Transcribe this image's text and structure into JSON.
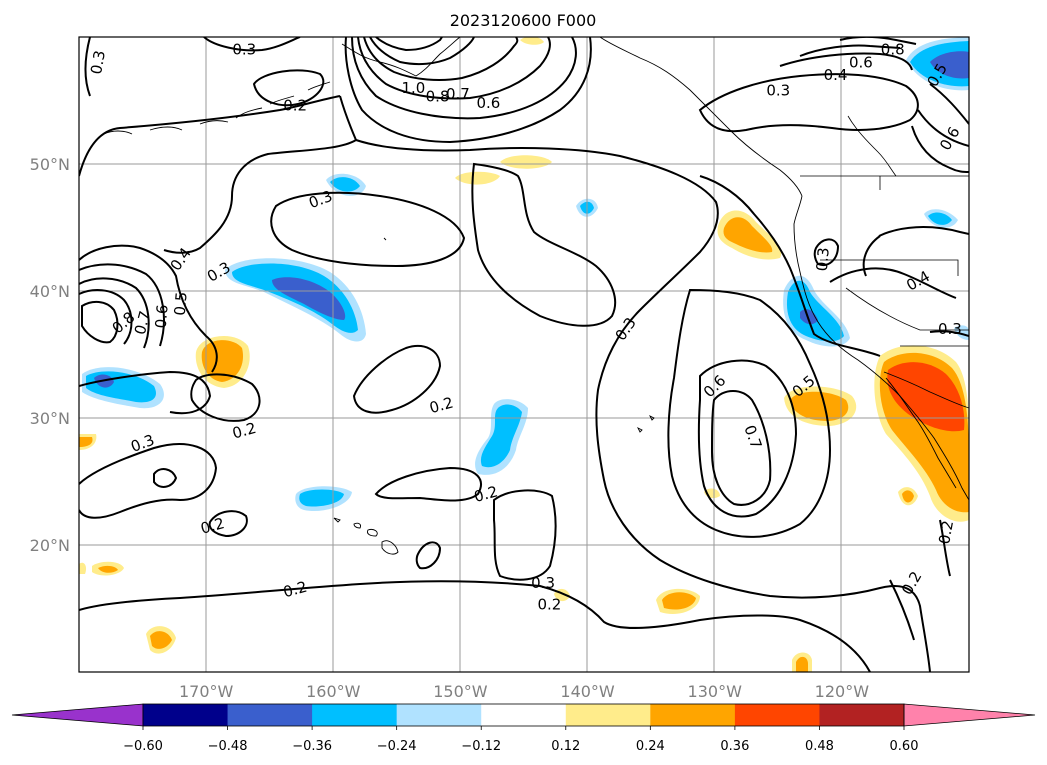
{
  "title": "2023120600 F000",
  "map": {
    "lon_range": [
      -180,
      -110
    ],
    "lat_range": [
      10,
      60
    ],
    "lon_ticks": [
      {
        "lon": -170,
        "label": "170°W"
      },
      {
        "lon": -160,
        "label": "160°W"
      },
      {
        "lon": -150,
        "label": "150°W"
      },
      {
        "lon": -140,
        "label": "140°W"
      },
      {
        "lon": -130,
        "label": "130°W"
      },
      {
        "lon": -120,
        "label": "120°W"
      }
    ],
    "lat_ticks": [
      {
        "lat": 20,
        "label": "20°N"
      },
      {
        "lat": 30,
        "label": "30°N"
      },
      {
        "lat": 40,
        "label": "40°N"
      },
      {
        "lat": 50,
        "label": "50°N"
      }
    ],
    "grid": true
  },
  "colorbar": {
    "colors": [
      "#9932cc",
      "#00008b",
      "#3a5fcd",
      "#00bfff",
      "#b0e2ff",
      "#ffffff",
      "#ffec8b",
      "#ffa500",
      "#ff4500",
      "#b22222",
      "#ff82ab"
    ],
    "labels": [
      "−0.60",
      "−0.48",
      "−0.36",
      "−0.24",
      "−0.12",
      "0.12",
      "0.24",
      "0.36",
      "0.48",
      "0.60"
    ],
    "values": [
      -0.6,
      -0.48,
      -0.36,
      -0.24,
      -0.12,
      0.12,
      0.24,
      0.36,
      0.48,
      0.6
    ],
    "extend": "both"
  },
  "contour_labels": [
    {
      "text": "0.3",
      "lon": -178.5,
      "lat": 58.0,
      "rot": -80
    },
    {
      "text": "0.3",
      "lon": -167.0,
      "lat": 59.0,
      "rot": 0
    },
    {
      "text": "0.2",
      "lon": -163.0,
      "lat": 54.6,
      "rot": 0
    },
    {
      "text": "1.0",
      "lon": -153.7,
      "lat": 56.0,
      "rot": 0
    },
    {
      "text": "0.8",
      "lon": -151.8,
      "lat": 55.3,
      "rot": 0
    },
    {
      "text": "0.7",
      "lon": -150.2,
      "lat": 55.5,
      "rot": 0
    },
    {
      "text": "0.6",
      "lon": -147.8,
      "lat": 54.8,
      "rot": 0
    },
    {
      "text": "0.8",
      "lon": -116.0,
      "lat": 59.0,
      "rot": 0
    },
    {
      "text": "0.6",
      "lon": -118.5,
      "lat": 58.0,
      "rot": 0
    },
    {
      "text": "0.4",
      "lon": -120.5,
      "lat": 57.0,
      "rot": 0
    },
    {
      "text": "0.5",
      "lon": -112.5,
      "lat": 57.0,
      "rot": -60
    },
    {
      "text": "0.3",
      "lon": -125.0,
      "lat": 55.8,
      "rot": 0
    },
    {
      "text": "0.6",
      "lon": -111.5,
      "lat": 52.0,
      "rot": -60
    },
    {
      "text": "0.3",
      "lon": -161.0,
      "lat": 47.2,
      "rot": -20
    },
    {
      "text": "0.4",
      "lon": -172.0,
      "lat": 42.5,
      "rot": -55
    },
    {
      "text": "0.3",
      "lon": -169.0,
      "lat": 41.5,
      "rot": -30
    },
    {
      "text": "0.5",
      "lon": -172.0,
      "lat": 39.0,
      "rot": -85
    },
    {
      "text": "0.8",
      "lon": -176.5,
      "lat": 37.5,
      "rot": -40
    },
    {
      "text": "0.7",
      "lon": -175.0,
      "lat": 37.5,
      "rot": -75
    },
    {
      "text": "0.6",
      "lon": -173.5,
      "lat": 38.0,
      "rot": -85
    },
    {
      "text": "0.3",
      "lon": -137.0,
      "lat": 37.0,
      "rot": -55
    },
    {
      "text": "0.3",
      "lon": -121.5,
      "lat": 42.5,
      "rot": -85
    },
    {
      "text": "0.4",
      "lon": -114.0,
      "lat": 40.8,
      "rot": -30
    },
    {
      "text": "0.3",
      "lon": -111.5,
      "lat": 37.0,
      "rot": 0
    },
    {
      "text": "0.6",
      "lon": -130.0,
      "lat": 32.5,
      "rot": -45
    },
    {
      "text": "0.5",
      "lon": -123.0,
      "lat": 32.5,
      "rot": -40
    },
    {
      "text": "0.7",
      "lon": -127.0,
      "lat": 28.5,
      "rot": 70
    },
    {
      "text": "0.2",
      "lon": -151.5,
      "lat": 31.0,
      "rot": -15
    },
    {
      "text": "0.2",
      "lon": -167.0,
      "lat": 29.0,
      "rot": -15
    },
    {
      "text": "0.3",
      "lon": -175.0,
      "lat": 28.0,
      "rot": -20
    },
    {
      "text": "0.2",
      "lon": -148.0,
      "lat": 24.0,
      "rot": -15
    },
    {
      "text": "0.2",
      "lon": -169.5,
      "lat": 21.5,
      "rot": -15
    },
    {
      "text": "0.3",
      "lon": -143.5,
      "lat": 17.0,
      "rot": 0
    },
    {
      "text": "0.2",
      "lon": -143.0,
      "lat": 15.3,
      "rot": 0
    },
    {
      "text": "0.2",
      "lon": -163.0,
      "lat": 16.5,
      "rot": -15
    },
    {
      "text": "0.2",
      "lon": -114.5,
      "lat": 17.0,
      "rot": -60
    },
    {
      "text": "0.2",
      "lon": -111.8,
      "lat": 21.0,
      "rot": -80
    }
  ]
}
